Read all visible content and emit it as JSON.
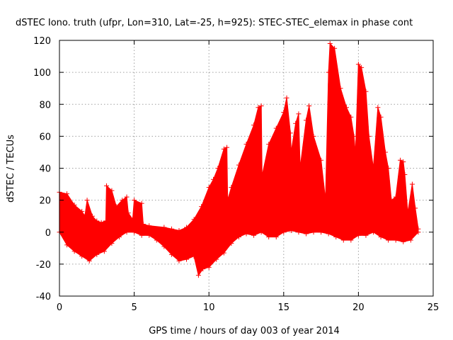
{
  "chart_data": {
    "type": "area",
    "title": "dSTEC Iono. truth (ufpr, Lon=310, Lat=-25, h=925): STEC-STEC_elemax in phase cont",
    "xlabel": "GPS time / hours of day 003 of year 2014",
    "ylabel": "dSTEC  / TECUs",
    "xlim": [
      0,
      25
    ],
    "ylim": [
      -40,
      120
    ],
    "xticks": [
      0,
      5,
      10,
      15,
      20,
      25
    ],
    "yticks": [
      -40,
      -20,
      0,
      20,
      40,
      60,
      80,
      100,
      120
    ],
    "xtick_labels": [
      "0",
      "5",
      "10",
      "15",
      "20",
      "25"
    ],
    "ytick_labels": [
      "-40",
      "-20",
      "0",
      "20",
      "40",
      "60",
      "80",
      "100",
      "120"
    ],
    "grid": true,
    "series": [
      {
        "name": "dSTEC",
        "color": "#ff0000",
        "marker": "plus",
        "upper": [
          [
            0,
            25
          ],
          [
            0.5,
            24
          ],
          [
            1,
            17
          ],
          [
            1.5,
            13
          ],
          [
            1.7,
            10
          ],
          [
            1.85,
            20
          ],
          [
            2.2,
            10
          ],
          [
            2.5,
            7
          ],
          [
            2.8,
            6
          ],
          [
            3.1,
            7
          ],
          [
            3.15,
            29
          ],
          [
            3.5,
            26
          ],
          [
            3.8,
            16
          ],
          [
            4.2,
            20
          ],
          [
            4.5,
            22
          ],
          [
            4.6,
            12
          ],
          [
            4.9,
            8
          ],
          [
            5,
            20
          ],
          [
            5.5,
            18
          ],
          [
            5.6,
            5
          ],
          [
            6,
            4
          ],
          [
            7,
            3
          ],
          [
            7.5,
            2
          ],
          [
            8,
            1
          ],
          [
            8.5,
            3
          ],
          [
            9,
            8
          ],
          [
            9.5,
            16
          ],
          [
            10,
            28
          ],
          [
            10.3,
            33
          ],
          [
            10.6,
            40
          ],
          [
            11,
            52
          ],
          [
            11.2,
            53
          ],
          [
            11.25,
            20
          ],
          [
            11.5,
            28
          ],
          [
            12,
            42
          ],
          [
            12.5,
            55
          ],
          [
            13,
            67
          ],
          [
            13.3,
            78
          ],
          [
            13.5,
            79
          ],
          [
            13.55,
            35
          ],
          [
            14,
            55
          ],
          [
            14.5,
            65
          ],
          [
            15,
            75
          ],
          [
            15.2,
            84
          ],
          [
            15.45,
            62
          ],
          [
            15.5,
            50
          ],
          [
            15.8,
            68
          ],
          [
            16,
            74
          ],
          [
            16.1,
            40
          ],
          [
            16.5,
            70
          ],
          [
            16.7,
            79
          ],
          [
            17,
            60
          ],
          [
            17.5,
            45
          ],
          [
            17.8,
            20
          ],
          [
            18,
            100
          ],
          [
            18.1,
            118
          ],
          [
            18.4,
            115
          ],
          [
            18.8,
            90
          ],
          [
            19.2,
            78
          ],
          [
            19.5,
            72
          ],
          [
            19.7,
            60
          ],
          [
            19.8,
            49
          ],
          [
            20,
            105
          ],
          [
            20.2,
            103
          ],
          [
            20.5,
            88
          ],
          [
            20.7,
            60
          ],
          [
            21,
            40
          ],
          [
            21.3,
            78
          ],
          [
            21.5,
            72
          ],
          [
            21.8,
            50
          ],
          [
            22,
            40
          ],
          [
            22.2,
            20
          ],
          [
            22.5,
            22
          ],
          [
            22.8,
            45
          ],
          [
            23,
            44
          ],
          [
            23.1,
            36
          ],
          [
            23.3,
            12
          ],
          [
            23.6,
            30
          ],
          [
            23.8,
            15
          ],
          [
            24,
            2
          ]
        ],
        "lower": [
          [
            0,
            0
          ],
          [
            0.5,
            -8
          ],
          [
            1,
            -12
          ],
          [
            1.5,
            -15
          ],
          [
            2,
            -18
          ],
          [
            2.5,
            -14
          ],
          [
            3,
            -12
          ],
          [
            3.5,
            -7
          ],
          [
            4,
            -3
          ],
          [
            4.5,
            0
          ],
          [
            5,
            0
          ],
          [
            5.5,
            -2
          ],
          [
            6,
            -2
          ],
          [
            6.5,
            -5
          ],
          [
            7,
            -9
          ],
          [
            7.5,
            -14
          ],
          [
            8,
            -18
          ],
          [
            8.5,
            -17
          ],
          [
            9,
            -15
          ],
          [
            9.3,
            -27
          ],
          [
            9.6,
            -23
          ],
          [
            10,
            -22
          ],
          [
            10.5,
            -17
          ],
          [
            11,
            -13
          ],
          [
            11.5,
            -7
          ],
          [
            12,
            -3
          ],
          [
            12.5,
            -1
          ],
          [
            13,
            -2
          ],
          [
            13.5,
            0
          ],
          [
            14,
            -3
          ],
          [
            14.5,
            -3
          ],
          [
            15,
            0
          ],
          [
            15.5,
            1
          ],
          [
            16,
            0
          ],
          [
            16.5,
            -1
          ],
          [
            17,
            0
          ],
          [
            17.5,
            0
          ],
          [
            18,
            -1
          ],
          [
            18.5,
            -3
          ],
          [
            19,
            -5
          ],
          [
            19.5,
            -5
          ],
          [
            20,
            -2
          ],
          [
            20.5,
            -2
          ],
          [
            21,
            0
          ],
          [
            21.5,
            -3
          ],
          [
            22,
            -5
          ],
          [
            22.5,
            -5
          ],
          [
            23,
            -6
          ],
          [
            23.5,
            -5
          ],
          [
            24,
            0
          ]
        ]
      }
    ]
  }
}
